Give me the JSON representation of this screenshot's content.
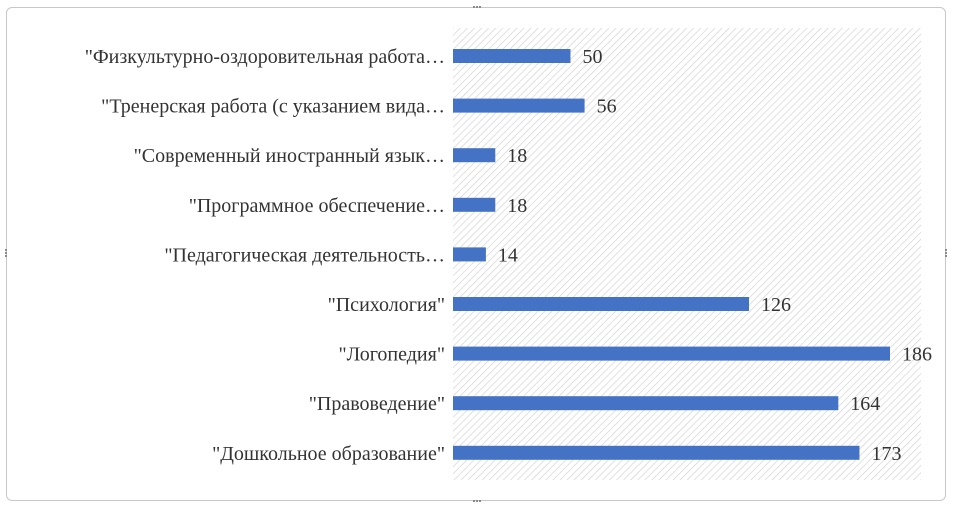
{
  "chart_data": {
    "type": "bar",
    "orientation": "horizontal",
    "categories": [
      "\"Физкультурно-оздоровительная работа…",
      "\"Тренерская работа (с указанием вида…",
      "\"Современный иностранный язык…",
      "\"Программное обеспечение…",
      "\"Педагогическая деятельность…",
      "\"Психология\"",
      "\"Логопедия\"",
      "\"Правоведение\"",
      "\"Дошкольное образование\""
    ],
    "values": [
      50,
      56,
      18,
      18,
      14,
      126,
      186,
      164,
      173
    ],
    "xlim": [
      0,
      200
    ],
    "bar_color": "#4472C4",
    "plot_pattern": "diagonal-hatch",
    "grid": false,
    "data_labels": true,
    "title": "",
    "xlabel": "",
    "ylabel": ""
  }
}
